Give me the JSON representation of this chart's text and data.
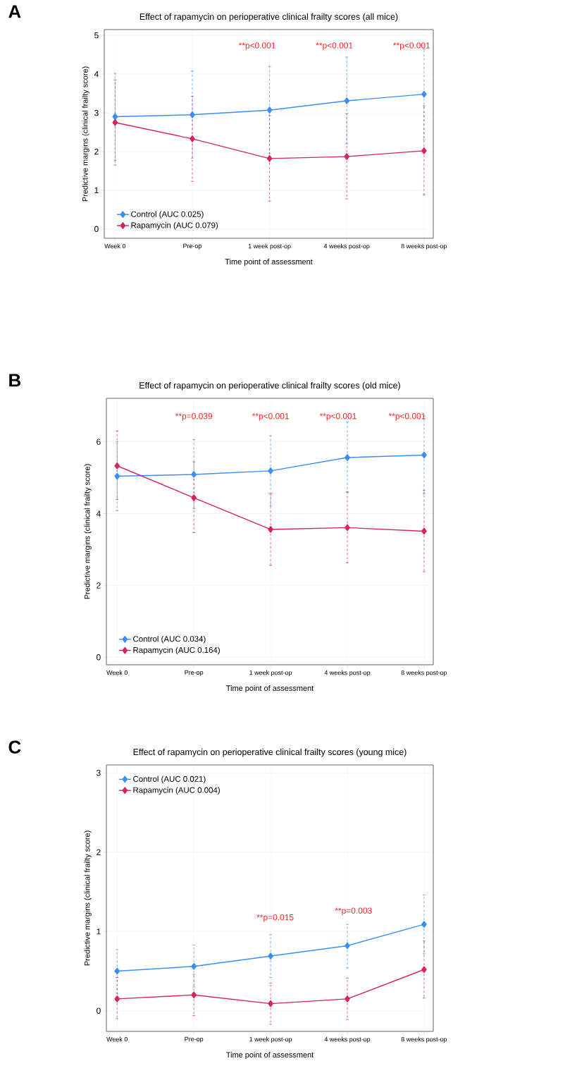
{
  "chart_data": [
    {
      "type": "line",
      "title": "Effect of rapamycin on perioperative clinical frailty scores (all mice)",
      "xlabel": "Time point of assessment",
      "ylabel": "Predictive margins (clinical frailty score)",
      "categories": [
        "Week 0",
        "Pre-op",
        "1 week post-op",
        "4 weeks post-op",
        "8 weeks post-op"
      ],
      "series": [
        {
          "name": "Control (AUC 0.025)",
          "color": "#3a8ff5",
          "values": [
            2.9,
            2.95,
            3.07,
            3.31,
            3.48
          ],
          "errors": [
            [
              1.77,
              4.02
            ],
            [
              1.83,
              4.08
            ],
            [
              1.95,
              4.2
            ],
            [
              2.2,
              4.44
            ],
            [
              2.31,
              4.65
            ]
          ]
        },
        {
          "name": "Rapamycin (AUC 0.079)",
          "color": "#d6245f",
          "values": [
            2.75,
            2.33,
            1.82,
            1.87,
            2.02
          ],
          "errors": [
            [
              1.65,
              3.85
            ],
            [
              1.23,
              3.43
            ],
            [
              0.72,
              2.93
            ],
            [
              0.78,
              2.98
            ],
            [
              0.88,
              3.18
            ]
          ]
        }
      ],
      "ylim": [
        -0.24,
        5.15
      ],
      "yticks": [
        0,
        1,
        2,
        3,
        4,
        5
      ],
      "grid": true,
      "legend": "bottom left",
      "marker": "diamond",
      "line_style": "solid",
      "annotations": [
        "A",
        "**p<0.001",
        "**p<0.001",
        "**p<0.001"
      ]
    },
    {
      "type": "line",
      "title": "Effect of rapamycin on perioperative clinical frailty scores (old mice)",
      "xlabel": "Time point of assessment",
      "ylabel": "Predictive margins (clinical frailty score)",
      "categories": [
        "Week 0",
        "Pre-op",
        "1 week post-op",
        "4 weeks post-op",
        "8 weeks post-op"
      ],
      "series": [
        {
          "name": "Control (AUC 0.034)",
          "color": "#3a8ff5",
          "values": [
            5.04,
            5.09,
            5.19,
            5.56,
            5.63
          ],
          "errors": [
            [
              4.08,
              6.0
            ],
            [
              4.14,
              6.06
            ],
            [
              4.22,
              6.17
            ],
            [
              4.6,
              6.55
            ],
            [
              4.55,
              6.72
            ]
          ]
        },
        {
          "name": "Rapamycin (AUC 0.164)",
          "color": "#d6245f",
          "values": [
            5.33,
            4.44,
            3.56,
            3.61,
            3.51
          ],
          "errors": [
            [
              4.39,
              6.3
            ],
            [
              3.47,
              5.44
            ],
            [
              2.56,
              4.55
            ],
            [
              2.63,
              4.6
            ],
            [
              2.38,
              4.65
            ]
          ]
        }
      ],
      "ylim": [
        -0.21,
        7.21
      ],
      "yticks": [
        0,
        2,
        4,
        6
      ],
      "grid": true,
      "legend": "bottom left",
      "marker": "diamond",
      "line_style": "solid",
      "annotations": [
        "B",
        "**p=0.039",
        "**p<0.001",
        "**p<0.001",
        "**p<0.001"
      ]
    },
    {
      "type": "line",
      "title": "Effect of rapamycin on perioperative clinical frailty scores (young mice)",
      "xlabel": "Time point of assessment",
      "ylabel": "Predictive margins (clinical frailty score)",
      "categories": [
        "Week 0",
        "Pre-op",
        "1 week post-op",
        "4 weeks post-op",
        "8 weeks post-op"
      ],
      "series": [
        {
          "name": "Control (AUC 0.021)",
          "color": "#3a8ff5",
          "values": [
            0.5,
            0.56,
            0.69,
            0.82,
            1.09
          ],
          "errors": [
            [
              0.22,
              0.77
            ],
            [
              0.3,
              0.83
            ],
            [
              0.42,
              0.96
            ],
            [
              0.54,
              1.09
            ],
            [
              0.72,
              1.46
            ]
          ]
        },
        {
          "name": "Rapamycin (AUC 0.004)",
          "color": "#d6245f",
          "values": [
            0.15,
            0.2,
            0.09,
            0.15,
            0.52
          ],
          "errors": [
            [
              -0.1,
              0.42
            ],
            [
              -0.06,
              0.46
            ],
            [
              -0.17,
              0.35
            ],
            [
              -0.11,
              0.41
            ],
            [
              0.16,
              0.88
            ]
          ]
        }
      ],
      "ylim": [
        -0.26,
        3.1
      ],
      "yticks": [
        0,
        1,
        2,
        3
      ],
      "grid": true,
      "legend": "top left",
      "marker": "diamond",
      "line_style": "solid",
      "annotations": [
        "C",
        "**p=0.015",
        "**p=0.003"
      ]
    }
  ]
}
